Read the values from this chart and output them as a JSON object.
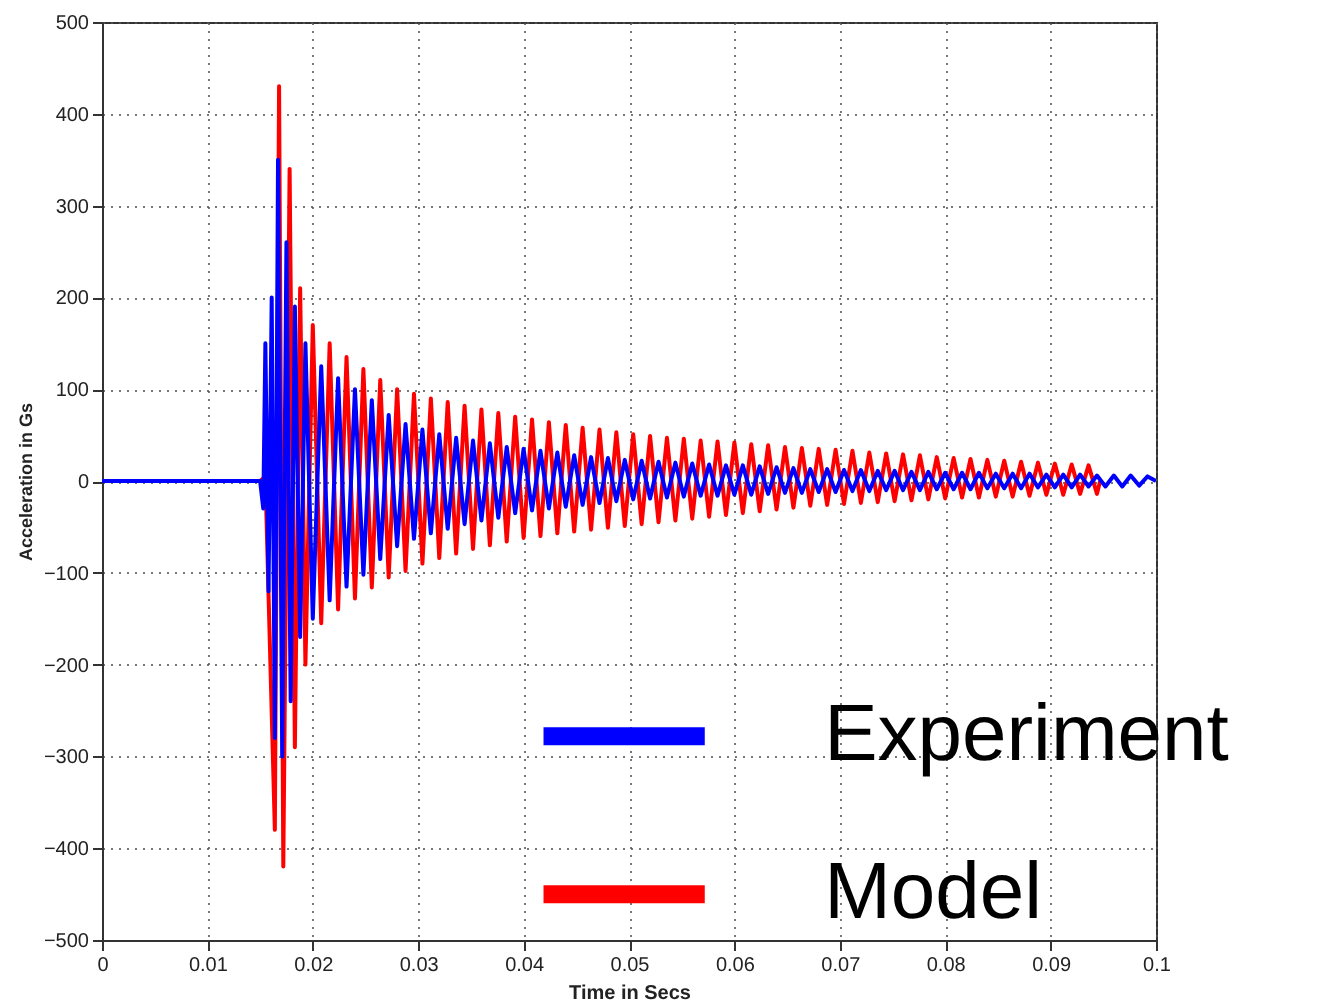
{
  "chart_data": {
    "type": "line",
    "xlabel": "Time in Secs",
    "ylabel": "Acceleration in Gs",
    "xlim": [
      0,
      0.1
    ],
    "xticks": [
      0,
      0.01,
      0.02,
      0.03,
      0.04,
      0.05,
      0.06,
      0.07,
      0.08,
      0.09,
      0.1
    ],
    "ylim": [
      -500,
      500
    ],
    "yticks": [
      -500,
      -400,
      -300,
      -200,
      -100,
      0,
      100,
      200,
      300,
      400,
      500
    ],
    "grid": true,
    "legend": "bottom right",
    "line_style": "solid",
    "series": [
      {
        "name": "Experiment",
        "color": "#0000ff",
        "x": [
          0,
          0.015,
          0.0153,
          0.0155,
          0.0158,
          0.0161,
          0.0164,
          0.0167,
          0.0171,
          0.0175,
          0.0179,
          0.0183,
          0.0188,
          0.0193,
          0.02,
          0.0208,
          0.0216,
          0.0224,
          0.0232,
          0.024,
          0.0248,
          0.0256,
          0.0264,
          0.0272,
          0.028,
          0.0288,
          0.0296,
          0.0304,
          0.0312,
          0.032,
          0.0328,
          0.0336,
          0.0344,
          0.0352,
          0.036,
          0.0368,
          0.0376,
          0.0384,
          0.0392,
          0.04,
          0.0408,
          0.0416,
          0.0424,
          0.0432,
          0.044,
          0.0448,
          0.0456,
          0.0464,
          0.0472,
          0.048,
          0.0488,
          0.0496,
          0.0504,
          0.0512,
          0.052,
          0.0528,
          0.0536,
          0.0544,
          0.0552,
          0.056,
          0.0568,
          0.0576,
          0.0584,
          0.0592,
          0.06,
          0.0608,
          0.0616,
          0.0624,
          0.0632,
          0.064,
          0.0648,
          0.0656,
          0.0664,
          0.0672,
          0.068,
          0.0688,
          0.0696,
          0.0704,
          0.0712,
          0.072,
          0.0728,
          0.0736,
          0.0744,
          0.0752,
          0.076,
          0.0768,
          0.0776,
          0.0784,
          0.0792,
          0.08,
          0.0808,
          0.0816,
          0.0824,
          0.0832,
          0.084,
          0.0848,
          0.0856,
          0.0864,
          0.0872,
          0.088,
          0.0888,
          0.0896,
          0.0904,
          0.0912,
          0.092,
          0.0928,
          0.0936,
          0.0944,
          0.0952,
          0.096,
          0.0968,
          0.0976,
          0.0984,
          0.0992,
          0.1
        ],
        "values": [
          0,
          0,
          -30,
          150,
          -120,
          200,
          -280,
          350,
          -300,
          260,
          -240,
          190,
          -170,
          150,
          -150,
          125,
          -130,
          112,
          -115,
          100,
          -102,
          88,
          -85,
          72,
          -71,
          62,
          -63,
          56,
          -57,
          51,
          -52,
          47,
          -47,
          44,
          -43,
          41,
          -40,
          37,
          -35,
          35,
          -32,
          33,
          -30,
          31,
          -28,
          28,
          -26,
          26,
          -24,
          25,
          -22,
          23,
          -20,
          22,
          -19,
          21,
          -18,
          20,
          -17,
          19,
          -16,
          18,
          -16,
          17,
          -15,
          17,
          -15,
          16,
          -14,
          15,
          -13,
          14,
          -13,
          13,
          -12,
          13,
          -12,
          12,
          -11,
          12,
          -11,
          11,
          -10,
          11,
          -10,
          10,
          -10,
          10,
          -9,
          9,
          -9,
          9,
          -9,
          9,
          -8,
          8,
          -8,
          8,
          -8,
          8,
          -7,
          7,
          -7,
          7,
          -7,
          7,
          -6,
          6,
          -6,
          6,
          -6,
          6,
          -5,
          5,
          0
        ]
      },
      {
        "name": "Model",
        "color": "#ff0000",
        "x": [
          0,
          0.015,
          0.0155,
          0.0164,
          0.0168,
          0.0172,
          0.0178,
          0.0183,
          0.0188,
          0.0193,
          0.02,
          0.0208,
          0.0216,
          0.0224,
          0.0232,
          0.024,
          0.0248,
          0.0256,
          0.0264,
          0.0272,
          0.028,
          0.0288,
          0.0296,
          0.0304,
          0.0312,
          0.032,
          0.0328,
          0.0336,
          0.0344,
          0.0352,
          0.036,
          0.0368,
          0.0376,
          0.0384,
          0.0392,
          0.04,
          0.0408,
          0.0416,
          0.0424,
          0.0432,
          0.044,
          0.0448,
          0.0456,
          0.0464,
          0.0472,
          0.048,
          0.0488,
          0.0496,
          0.0504,
          0.0512,
          0.052,
          0.0528,
          0.0536,
          0.0544,
          0.0552,
          0.056,
          0.0568,
          0.0576,
          0.0584,
          0.0592,
          0.06,
          0.0608,
          0.0616,
          0.0624,
          0.0632,
          0.064,
          0.0648,
          0.0656,
          0.0664,
          0.0672,
          0.068,
          0.0688,
          0.0696,
          0.0704,
          0.0712,
          0.072,
          0.0728,
          0.0736,
          0.0744,
          0.0752,
          0.076,
          0.0768,
          0.0776,
          0.0784,
          0.0792,
          0.08,
          0.0808,
          0.0816,
          0.0824,
          0.0832,
          0.084,
          0.0848,
          0.0856,
          0.0864,
          0.0872,
          0.088,
          0.0888,
          0.0896,
          0.0904,
          0.0912,
          0.092,
          0.0928,
          0.0936,
          0.0944,
          0.0947
        ],
        "values": [
          0,
          0,
          5,
          -380,
          430,
          -420,
          340,
          -290,
          210,
          -200,
          170,
          -155,
          150,
          -140,
          135,
          -128,
          122,
          -116,
          110,
          -105,
          100,
          -98,
          95,
          -90,
          90,
          -84,
          86,
          -79,
          82,
          -74,
          78,
          -70,
          74,
          -66,
          70,
          -62,
          67,
          -60,
          64,
          -57,
          61,
          -55,
          58,
          -53,
          56,
          -51,
          53,
          -49,
          51,
          -47,
          49,
          -45,
          47,
          -43,
          46,
          -41,
          44,
          -39,
          43,
          -37,
          42,
          -35,
          40,
          -33,
          39,
          -31,
          37,
          -29,
          36,
          -27,
          35,
          -26,
          34,
          -25,
          33,
          -24,
          31,
          -23,
          30,
          -22,
          29,
          -21,
          28,
          -20,
          26,
          -19,
          25,
          -18,
          24,
          -18,
          23,
          -17,
          22,
          -17,
          21,
          -16,
          20,
          -15,
          19,
          -15,
          18,
          -14,
          17,
          -14,
          0
        ]
      }
    ]
  }
}
